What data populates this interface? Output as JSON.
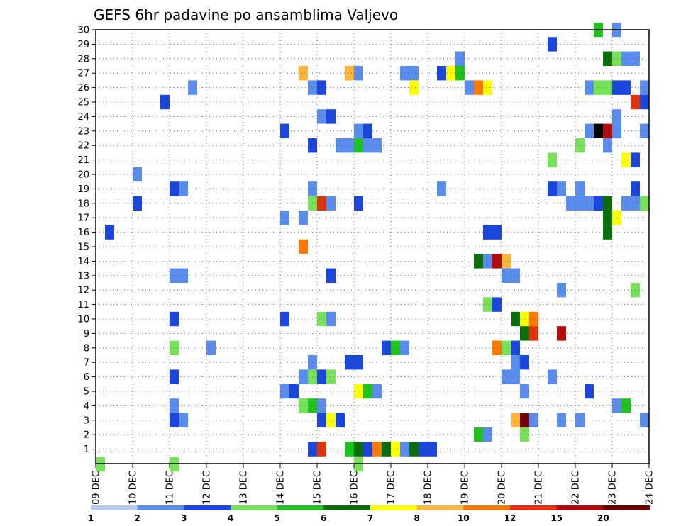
{
  "chart_data": {
    "type": "heatmap",
    "title": "GEFS 6hr padavine po ansamblima Valjevo",
    "xlabel": "",
    "ylabel": "",
    "x_ticks": [
      "09 DEC",
      "10 DEC",
      "11 DEC",
      "12 DEC",
      "13 DEC",
      "14 DEC",
      "15 DEC",
      "16 DEC",
      "17 DEC",
      "18 DEC",
      "19 DEC",
      "20 DEC",
      "21 DEC",
      "22 DEC",
      "23 DEC",
      "24 DEC"
    ],
    "x_range_days": [
      0,
      15
    ],
    "y_ticks": [
      "1",
      "2",
      "3",
      "4",
      "5",
      "6",
      "7",
      "8",
      "9",
      "10",
      "11",
      "12",
      "13",
      "14",
      "15",
      "16",
      "17",
      "18",
      "19",
      "20",
      "21",
      "22",
      "23",
      "24",
      "25",
      "26",
      "27",
      "28",
      "29",
      "30"
    ],
    "y_range": [
      0,
      30
    ],
    "step_days": 0.25,
    "grid": true,
    "colorbar": {
      "labels": [
        "1",
        "2",
        "3",
        "4",
        "5",
        "6",
        "7",
        "8",
        "10",
        "12",
        "15",
        "20"
      ],
      "colors": [
        "#b4c8f0",
        "#5a8cee",
        "#1a46dc",
        "#78e15a",
        "#1ec31e",
        "#0a6e0a",
        "#ffff00",
        "#ffb43c",
        "#ff7800",
        "#e1320a",
        "#b40a0a",
        "#6e0000"
      ]
    },
    "cells": [
      [
        0.0,
        -0.05,
        3
      ],
      [
        0.25,
        16,
        2
      ],
      [
        1.0,
        20,
        1
      ],
      [
        1.0,
        18,
        2
      ],
      [
        2.0,
        19,
        2
      ],
      [
        1.75,
        25,
        2
      ],
      [
        2.0,
        13,
        1
      ],
      [
        2.0,
        10,
        2
      ],
      [
        2.0,
        8,
        3
      ],
      [
        2.0,
        6,
        2
      ],
      [
        2.0,
        4,
        1
      ],
      [
        2.0,
        3,
        2
      ],
      [
        2.0,
        -0.05,
        3
      ],
      [
        2.25,
        3,
        1
      ],
      [
        2.25,
        13,
        1
      ],
      [
        2.25,
        19,
        1
      ],
      [
        2.5,
        26,
        1
      ],
      [
        3.0,
        8,
        1
      ],
      [
        5.0,
        23,
        2
      ],
      [
        5.0,
        5,
        1
      ],
      [
        5.0,
        10,
        2
      ],
      [
        5.0,
        17,
        1
      ],
      [
        5.25,
        5,
        2
      ],
      [
        5.5,
        27,
        7
      ],
      [
        5.5,
        17,
        1
      ],
      [
        5.5,
        15,
        8
      ],
      [
        5.5,
        6,
        1
      ],
      [
        5.5,
        4,
        3
      ],
      [
        5.75,
        26,
        1
      ],
      [
        5.75,
        22,
        2
      ],
      [
        5.75,
        19,
        1
      ],
      [
        5.75,
        18,
        3
      ],
      [
        5.75,
        7,
        1
      ],
      [
        5.75,
        6,
        3
      ],
      [
        5.75,
        4,
        4
      ],
      [
        5.75,
        1,
        2
      ],
      [
        6.0,
        26,
        2
      ],
      [
        6.0,
        24,
        1
      ],
      [
        6.0,
        18,
        9
      ],
      [
        6.0,
        10,
        3
      ],
      [
        6.0,
        6,
        2
      ],
      [
        6.0,
        4,
        1
      ],
      [
        6.0,
        3,
        2
      ],
      [
        6.0,
        1,
        9
      ],
      [
        6.25,
        24,
        2
      ],
      [
        6.25,
        18,
        1
      ],
      [
        6.25,
        13,
        2
      ],
      [
        6.25,
        10,
        1
      ],
      [
        6.25,
        6,
        3
      ],
      [
        6.25,
        3,
        6
      ],
      [
        6.5,
        3,
        2
      ],
      [
        6.5,
        22,
        1
      ],
      [
        6.75,
        27,
        7
      ],
      [
        6.75,
        22,
        1
      ],
      [
        6.75,
        7,
        2
      ],
      [
        6.75,
        1,
        4
      ],
      [
        7.0,
        27,
        1
      ],
      [
        7.0,
        23,
        1
      ],
      [
        7.0,
        22,
        4
      ],
      [
        7.0,
        18,
        2
      ],
      [
        7.0,
        7,
        2
      ],
      [
        7.0,
        5,
        6
      ],
      [
        7.0,
        1,
        5
      ],
      [
        7.0,
        -0.05,
        3
      ],
      [
        7.25,
        23,
        2
      ],
      [
        7.25,
        22,
        1
      ],
      [
        7.25,
        5,
        4
      ],
      [
        7.25,
        1,
        2
      ],
      [
        7.5,
        22,
        1
      ],
      [
        7.5,
        5,
        1
      ],
      [
        7.5,
        1,
        8
      ],
      [
        7.75,
        8,
        2
      ],
      [
        7.75,
        1,
        5
      ],
      [
        8.0,
        8,
        4
      ],
      [
        8.0,
        1,
        6
      ],
      [
        8.25,
        27,
        1
      ],
      [
        8.25,
        8,
        1
      ],
      [
        8.25,
        1,
        1
      ],
      [
        8.5,
        27,
        1
      ],
      [
        8.5,
        26,
        6
      ],
      [
        8.5,
        1,
        5
      ],
      [
        8.75,
        1,
        2
      ],
      [
        9.0,
        1,
        2
      ],
      [
        9.25,
        27,
        2
      ],
      [
        9.25,
        19,
        1
      ],
      [
        9.5,
        27,
        6
      ],
      [
        9.75,
        28,
        1
      ],
      [
        9.75,
        27,
        4
      ],
      [
        10.0,
        26,
        1
      ],
      [
        10.25,
        26,
        8
      ],
      [
        10.25,
        14,
        5
      ],
      [
        10.25,
        2,
        4
      ],
      [
        10.5,
        26,
        6
      ],
      [
        10.5,
        16,
        2
      ],
      [
        10.5,
        14,
        1
      ],
      [
        10.5,
        11,
        3
      ],
      [
        10.5,
        2,
        1
      ],
      [
        10.75,
        16,
        2
      ],
      [
        10.75,
        14,
        10
      ],
      [
        10.75,
        11,
        2
      ],
      [
        10.75,
        8,
        8
      ],
      [
        11.0,
        14,
        7
      ],
      [
        11.0,
        13,
        1
      ],
      [
        11.0,
        8,
        3
      ],
      [
        11.0,
        6,
        1
      ],
      [
        11.25,
        13,
        1
      ],
      [
        11.25,
        10,
        5
      ],
      [
        11.25,
        8,
        2
      ],
      [
        11.25,
        7,
        1
      ],
      [
        11.25,
        6,
        1
      ],
      [
        11.25,
        3,
        7
      ],
      [
        11.5,
        10,
        6
      ],
      [
        11.5,
        9,
        5
      ],
      [
        11.5,
        7,
        2
      ],
      [
        11.5,
        5,
        1
      ],
      [
        11.5,
        3,
        11
      ],
      [
        11.5,
        2,
        3
      ],
      [
        11.75,
        10,
        8
      ],
      [
        11.75,
        9,
        9
      ],
      [
        11.75,
        3,
        1
      ],
      [
        12.25,
        29,
        2
      ],
      [
        12.25,
        21,
        3
      ],
      [
        12.25,
        19,
        2
      ],
      [
        12.25,
        6,
        1
      ],
      [
        12.5,
        19,
        1
      ],
      [
        12.5,
        12,
        1
      ],
      [
        12.5,
        9,
        10
      ],
      [
        12.5,
        3,
        1
      ],
      [
        12.75,
        18,
        1
      ],
      [
        13.0,
        22,
        3
      ],
      [
        13.0,
        19,
        1
      ],
      [
        13.0,
        18,
        1
      ],
      [
        13.0,
        3,
        1
      ],
      [
        13.25,
        26,
        1
      ],
      [
        13.25,
        23,
        1
      ],
      [
        13.25,
        18,
        1
      ],
      [
        13.25,
        5,
        2
      ],
      [
        13.5,
        30,
        4
      ],
      [
        13.5,
        26,
        3
      ],
      [
        13.5,
        23,
        12
      ],
      [
        13.5,
        18,
        2
      ],
      [
        13.75,
        28,
        5
      ],
      [
        13.75,
        26,
        3
      ],
      [
        13.75,
        23,
        10
      ],
      [
        13.75,
        22,
        1
      ],
      [
        13.75,
        18,
        5
      ],
      [
        13.75,
        17,
        5
      ],
      [
        13.75,
        16,
        5
      ],
      [
        14.0,
        30,
        1
      ],
      [
        14.0,
        28,
        3
      ],
      [
        14.0,
        26,
        2
      ],
      [
        14.0,
        24,
        1
      ],
      [
        14.0,
        23,
        1
      ],
      [
        14.0,
        17,
        6
      ],
      [
        14.0,
        4,
        1
      ],
      [
        14.25,
        28,
        1
      ],
      [
        14.25,
        26,
        2
      ],
      [
        14.25,
        21,
        6
      ],
      [
        14.25,
        18,
        1
      ],
      [
        14.25,
        4,
        4
      ],
      [
        14.5,
        28,
        1
      ],
      [
        14.5,
        25,
        9
      ],
      [
        14.5,
        21,
        2
      ],
      [
        14.5,
        19,
        2
      ],
      [
        14.5,
        18,
        1
      ],
      [
        14.5,
        12,
        3
      ],
      [
        14.75,
        26,
        1
      ],
      [
        14.75,
        25,
        2
      ],
      [
        14.75,
        23,
        1
      ],
      [
        14.75,
        18,
        3
      ],
      [
        14.75,
        3,
        1
      ]
    ]
  }
}
